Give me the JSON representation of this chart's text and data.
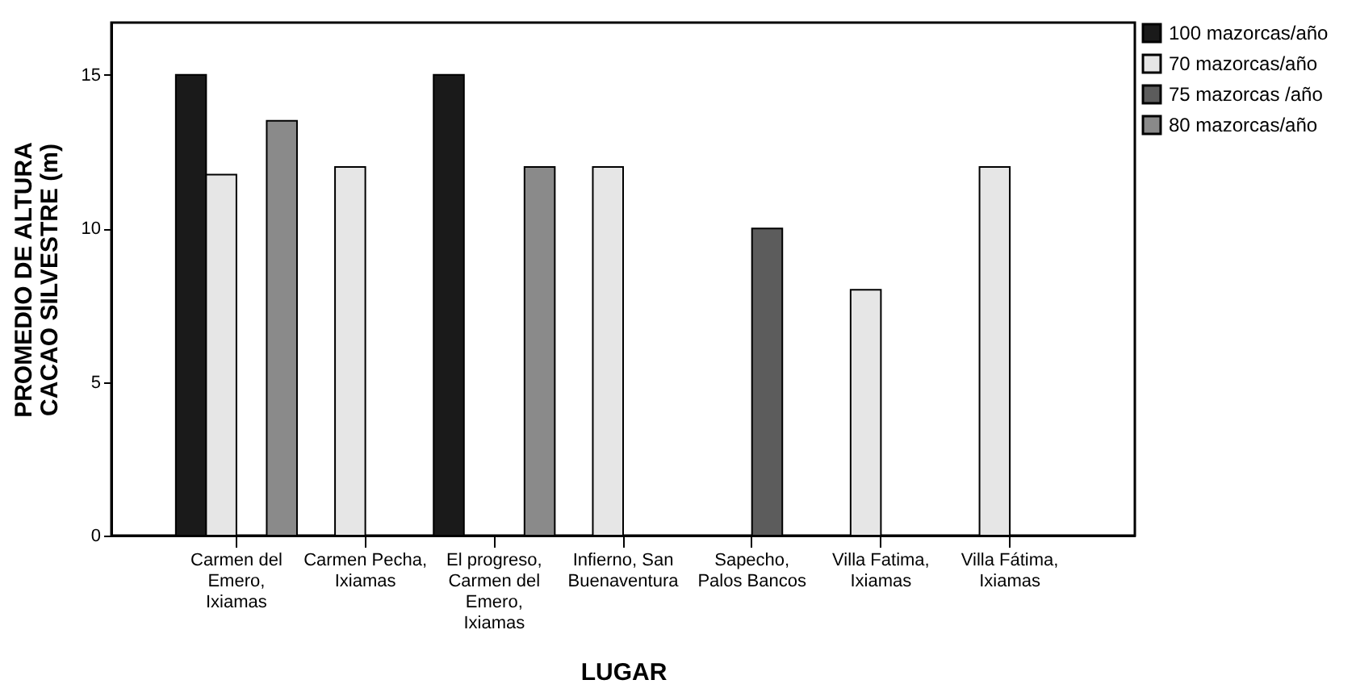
{
  "chart_data": {
    "type": "bar",
    "xlabel": "LUGAR",
    "ylabel": "PROMEDIO DE ALTURA CACAO SILVESTRE (m)",
    "categories": [
      "Carmen del Emero, Ixiamas",
      "Carmen Pecha, Ixiamas",
      "El progreso, Carmen del Emero, Ixiamas",
      "Infierno, San Buenaventura",
      "Sapecho, Palos Bancos",
      "Villa Fatima, Ixiamas",
      "Villa Fátima, Ixiamas"
    ],
    "series": [
      {
        "name": "100 mazorcas/año",
        "color": "#1a1a1a",
        "values": [
          15,
          null,
          15,
          null,
          null,
          null,
          null
        ]
      },
      {
        "name": "70 mazorcas/año",
        "color": "#e6e6e6",
        "values": [
          11.75,
          12,
          null,
          12,
          null,
          8,
          12
        ]
      },
      {
        "name": "75 mazorcas /año",
        "color": "#5c5c5c",
        "values": [
          null,
          null,
          null,
          null,
          10,
          null,
          null
        ]
      },
      {
        "name": "80 mazorcas/año",
        "color": "#8a8a8a",
        "values": [
          13.5,
          null,
          12,
          null,
          null,
          null,
          null
        ]
      }
    ],
    "ylim": [
      0,
      16.7
    ],
    "yticks": [
      0,
      5,
      10,
      15
    ],
    "grid": false,
    "legend": "top right"
  }
}
